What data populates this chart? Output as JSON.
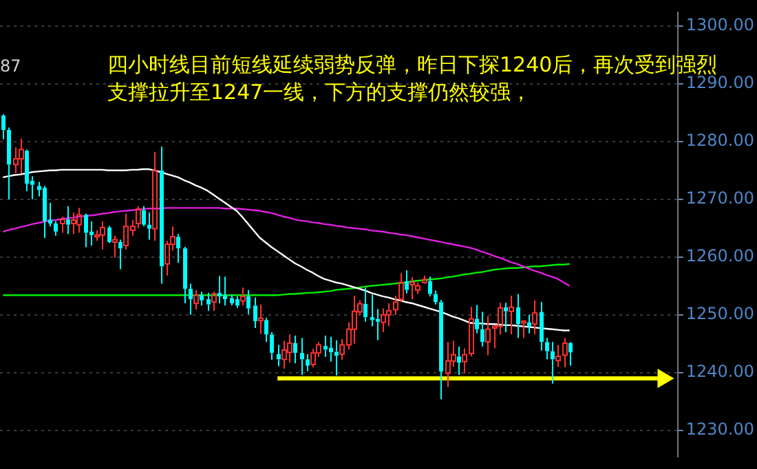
{
  "chart_data": {
    "type": "candlestick",
    "categories": [
      null,
      null,
      null,
      null,
      null,
      null,
      null,
      null,
      null,
      null,
      null,
      null,
      null,
      null,
      null,
      null,
      null,
      null,
      null,
      null,
      null,
      null,
      null,
      null,
      null,
      null,
      null,
      null,
      null,
      null,
      null,
      null,
      null,
      null,
      null,
      null,
      null,
      null,
      null,
      null,
      null,
      null,
      null,
      null,
      null,
      null,
      null,
      null,
      null,
      null,
      null,
      null,
      null,
      null,
      null,
      null,
      null,
      null,
      null,
      null,
      null,
      null,
      null,
      null,
      null,
      null,
      null,
      null,
      null,
      null,
      null,
      null,
      null,
      null,
      null,
      null,
      null,
      null,
      null,
      null,
      null,
      null,
      null,
      null,
      null,
      null,
      null,
      null,
      null,
      null,
      null,
      null,
      null,
      null,
      null,
      null,
      null,
      null,
      null,
      null,
      null,
      null,
      null,
      null,
      null,
      null,
      null,
      null,
      null,
      null,
      null,
      null,
      null,
      null,
      null,
      null
    ],
    "ohlc": [
      [
        1284.5,
        1284.7,
        1280.4,
        1282
      ],
      [
        1282,
        1282.4,
        1270,
        1276
      ],
      [
        1276,
        1279,
        1274.5,
        1277
      ],
      [
        1277,
        1280.5,
        1274.5,
        1278.6
      ],
      [
        1278.4,
        1278.6,
        1271.4,
        1272.7
      ],
      [
        1273.2,
        1274,
        1270,
        1272.5
      ],
      [
        1272.3,
        1273,
        1270.5,
        1271.6
      ],
      [
        1272,
        1272.3,
        1263.3,
        1266.2
      ],
      [
        1266.5,
        1269.4,
        1265.3,
        1265.8
      ],
      [
        1265.8,
        1266.2,
        1263.7,
        1264.4
      ],
      [
        1265.8,
        1267,
        1264.2,
        1266.5
      ],
      [
        1266.5,
        1268.8,
        1264,
        1265.6
      ],
      [
        1265.8,
        1267.7,
        1264,
        1266.4
      ],
      [
        1265.6,
        1268.5,
        1264.2,
        1267.3
      ],
      [
        1267.3,
        1267.5,
        1261.7,
        1264.2
      ],
      [
        1264.4,
        1266.2,
        1262,
        1263.8
      ],
      [
        1263.5,
        1264.6,
        1262.8,
        1263.8
      ],
      [
        1263.8,
        1266.2,
        1261.3,
        1265.1
      ],
      [
        1265.1,
        1265.4,
        1262.4,
        1262.6
      ],
      [
        1262.6,
        1263.7,
        1259.9,
        1263
      ],
      [
        1262.6,
        1263,
        1257.9,
        1261.5
      ],
      [
        1262,
        1267.5,
        1261.3,
        1265.3
      ],
      [
        1264.6,
        1266.4,
        1263.7,
        1265.3
      ],
      [
        1265.8,
        1268.8,
        1265,
        1268.3
      ],
      [
        1268.1,
        1268.8,
        1265.3,
        1265.6
      ],
      [
        1265.6,
        1267.7,
        1263,
        1264.9
      ],
      [
        1264.9,
        1278.2,
        1262.8,
        1275
      ],
      [
        1275,
        1279.1,
        1255.4,
        1258.4
      ],
      [
        1258.8,
        1262.8,
        1256.8,
        1262.2
      ],
      [
        1262.2,
        1265.3,
        1261.1,
        1263.5
      ],
      [
        1263.5,
        1264,
        1259,
        1261.5
      ],
      [
        1261.5,
        1261.8,
        1252,
        1254.5
      ],
      [
        1254.5,
        1255.4,
        1250,
        1252.7
      ],
      [
        1252,
        1254.3,
        1250.9,
        1253.4
      ],
      [
        1253.4,
        1254,
        1251.6,
        1252.5
      ],
      [
        1252.7,
        1253.8,
        1250.7,
        1251.8
      ],
      [
        1252.2,
        1254,
        1250.7,
        1253.6
      ],
      [
        1253.8,
        1256.7,
        1252,
        1253.2
      ],
      [
        1253.4,
        1256.6,
        1251.6,
        1252.7
      ],
      [
        1252.9,
        1253.5,
        1251.6,
        1252
      ],
      [
        1252.7,
        1253.2,
        1251.2,
        1251.6
      ],
      [
        1252.4,
        1254.7,
        1251.6,
        1253.2
      ],
      [
        1253.2,
        1254.3,
        1250.1,
        1251.1
      ],
      [
        1251.6,
        1253,
        1247.7,
        1248.9
      ],
      [
        1249,
        1251.8,
        1246.7,
        1249.4
      ],
      [
        1249.1,
        1249.5,
        1245.3,
        1246.6
      ],
      [
        1246.6,
        1247,
        1242.2,
        1243.4
      ],
      [
        1243.2,
        1244.8,
        1241.1,
        1242.3
      ],
      [
        1242.3,
        1245.5,
        1240.7,
        1243.9
      ],
      [
        1243.5,
        1246.6,
        1241.7,
        1245.1
      ],
      [
        1245.1,
        1246.4,
        1241.6,
        1243.4
      ],
      [
        1243.4,
        1246,
        1239.6,
        1242.3
      ],
      [
        1242.3,
        1243.2,
        1240.2,
        1241.2
      ],
      [
        1241.4,
        1244.1,
        1240.9,
        1243.4
      ],
      [
        1243.4,
        1245.3,
        1242.7,
        1244.8
      ],
      [
        1244.6,
        1246.4,
        1242.7,
        1244
      ],
      [
        1244.3,
        1246.2,
        1241.9,
        1243.5
      ],
      [
        1243.6,
        1245.6,
        1239.5,
        1242.9
      ],
      [
        1243.2,
        1245.8,
        1242.2,
        1244.8
      ],
      [
        1244.8,
        1248.7,
        1244,
        1247.5
      ],
      [
        1247.5,
        1253.3,
        1245,
        1250.6
      ],
      [
        1250.5,
        1252.5,
        1250,
        1251.9
      ],
      [
        1251.9,
        1254.7,
        1248.8,
        1249.6
      ],
      [
        1249.6,
        1253.5,
        1248,
        1249.1
      ],
      [
        1249.3,
        1251,
        1245.6,
        1248.8
      ],
      [
        1248.7,
        1251.1,
        1247,
        1250
      ],
      [
        1250,
        1252,
        1248,
        1250.7
      ],
      [
        1250.9,
        1253.3,
        1250,
        1252.2
      ],
      [
        1252.7,
        1257.2,
        1252.2,
        1255.6
      ],
      [
        1255.8,
        1257.7,
        1253.7,
        1254.3
      ],
      [
        1255.2,
        1256.5,
        1252.7,
        1255.6
      ],
      [
        1254.3,
        1255.6,
        1253.6,
        1255
      ],
      [
        1255.6,
        1256.8,
        1255.4,
        1256.1
      ],
      [
        1255.8,
        1256.6,
        1253.2,
        1253.6
      ],
      [
        1253.6,
        1254.2,
        1251.8,
        1252.2
      ],
      [
        1252.2,
        1252.6,
        1235.4,
        1240.2
      ],
      [
        1239.9,
        1245.3,
        1237.5,
        1242
      ],
      [
        1242,
        1245.5,
        1241,
        1243.1
      ],
      [
        1242.8,
        1244.5,
        1239.6,
        1241.7
      ],
      [
        1241.9,
        1244.2,
        1239.9,
        1243.1
      ],
      [
        1243.3,
        1251.4,
        1242.8,
        1249.3
      ],
      [
        1249.3,
        1251.7,
        1246.8,
        1247.5
      ],
      [
        1247.5,
        1250.5,
        1244.5,
        1245.3
      ],
      [
        1245.3,
        1249.8,
        1243,
        1247.5
      ],
      [
        1247.7,
        1248.2,
        1244.2,
        1248
      ],
      [
        1248,
        1252.1,
        1246.6,
        1251.2
      ],
      [
        1251.3,
        1252.1,
        1247,
        1250.6
      ],
      [
        1250.6,
        1253.3,
        1246.6,
        1251.3
      ],
      [
        1251.3,
        1253.6,
        1246,
        1248.4
      ],
      [
        1248.6,
        1248.9,
        1246,
        1248.9
      ],
      [
        1248.7,
        1250,
        1246.8,
        1248
      ],
      [
        1248.4,
        1252.5,
        1246.6,
        1250.3
      ],
      [
        1250.5,
        1252.2,
        1243.8,
        1245.3
      ],
      [
        1245.3,
        1246,
        1242.3,
        1243.7
      ],
      [
        1243.7,
        1245.3,
        1238.1,
        1242.3
      ],
      [
        1242.1,
        1244.8,
        1241,
        1242.8
      ],
      [
        1243,
        1246,
        1240.9,
        1245.1
      ],
      [
        1245.1,
        1245.3,
        1241.2,
        1243.5
      ],
      null,
      null,
      null,
      null,
      null,
      null,
      null,
      null,
      null,
      null,
      null,
      null,
      null,
      null,
      null,
      null,
      null,
      null
    ],
    "colors": [
      "#00ffff",
      "#00ffff",
      "#ff3232",
      "#ff3232",
      "#00ffff",
      "#00ffff",
      "#00ffff",
      "#00ffff",
      "#00ffff",
      "#00ffff",
      "#ff3232",
      "#00ffff",
      "#ff3232",
      "#ff3232",
      "#00ffff",
      "#00ffff",
      "#ff3232",
      "#ff3232",
      "#00ffff",
      "#ff3232",
      "#00ffff",
      "#ff3232",
      "#ff3232",
      "#ff3232",
      "#00ffff",
      "#00ffff",
      "#ff3232",
      "#00ffff",
      "#ff3232",
      "#ff3232",
      "#00ffff",
      "#00ffff",
      "#00ffff",
      "#ff3232",
      "#00ffff",
      "#00ffff",
      "#ff3232",
      "#00ffff",
      "#00ffff",
      "#00ffff",
      "#00ffff",
      "#ff3232",
      "#00ffff",
      "#00ffff",
      "#ff3232",
      "#00ffff",
      "#00ffff",
      "#00ffff",
      "#ff3232",
      "#ff3232",
      "#00ffff",
      "#00ffff",
      "#00ffff",
      "#ff3232",
      "#ff3232",
      "#00ffff",
      "#00ffff",
      "#00ffff",
      "#ff3232",
      "#ff3232",
      "#ff3232",
      "#ff3232",
      "#00ffff",
      "#00ffff",
      "#00ffff",
      "#ff3232",
      "#ff3232",
      "#ff3232",
      "#ff3232",
      "#00ffff",
      "#ff3232",
      "#ff3232",
      "#ff3232",
      "#00ffff",
      "#00ffff",
      "#00ffff",
      "#ff3232",
      "#ff3232",
      "#00ffff",
      "#ff3232",
      "#ff3232",
      "#00ffff",
      "#00ffff",
      "#ff3232",
      "#ff3232",
      "#ff3232",
      "#00ffff",
      "#ff3232",
      "#00ffff",
      "#ff3232",
      "#00ffff",
      "#ff3232",
      "#00ffff",
      "#00ffff",
      "#00ffff",
      "#ff3232",
      "#ff3232",
      "#00ffff",
      null,
      null,
      null,
      null,
      null,
      null,
      null,
      null,
      null,
      null,
      null,
      null,
      null,
      null,
      null,
      null,
      null,
      null
    ],
    "series": [
      {
        "type": "line",
        "color": "#ffffff",
        "values": [
          1273.8,
          1274.0,
          1274.2,
          1274.3,
          1274.5,
          1274.7,
          1274.8,
          1274.9,
          1275.0,
          1275.0,
          1275.1,
          1275.1,
          1275.1,
          1275.1,
          1275.1,
          1275.1,
          1275.1,
          1275.1,
          1275.0,
          1275.0,
          1275.0,
          1275.0,
          1275.1,
          1275.1,
          1275.2,
          1275.2,
          1275.0,
          1274.7,
          1274.4,
          1274.1,
          1273.8,
          1273.3,
          1272.9,
          1272.4,
          1272.0,
          1271.5,
          1270.8,
          1270.1,
          1269.4,
          1268.7,
          1268.0,
          1266.9,
          1265.7,
          1264.5,
          1263.3,
          1262.5,
          1261.7,
          1261.0,
          1260.3,
          1259.6,
          1258.9,
          1258.4,
          1257.8,
          1257.3,
          1256.7,
          1256.2,
          1255.9,
          1255.6,
          1255.4,
          1255.1,
          1254.8,
          1254.5,
          1254.2,
          1253.8,
          1253.5,
          1253.2,
          1253.0,
          1252.7,
          1252.5,
          1252.2,
          1252.0,
          1251.7,
          1251.4,
          1251.1,
          1250.8,
          1250.5,
          1250.1,
          1249.7,
          1249.4,
          1249.0,
          1248.6,
          1248.5,
          1248.5,
          1248.4,
          1248.4,
          1248.3,
          1248.2,
          1248.2,
          1248.1,
          1248.0,
          1247.9,
          1247.8,
          1247.7,
          1247.6,
          1247.5,
          1247.4,
          1247.3,
          1247.3,
          null,
          null,
          null,
          null,
          null,
          null,
          null,
          null,
          null,
          null,
          null,
          null,
          null,
          null,
          null,
          null,
          null,
          null
        ]
      },
      {
        "type": "line",
        "color": "#e020e0",
        "values": [
          1264.4,
          1264.7,
          1264.9,
          1265.2,
          1265.4,
          1265.7,
          1265.9,
          1266.1,
          1266.3,
          1266.4,
          1266.6,
          1266.7,
          1266.8,
          1267.0,
          1267.1,
          1267.2,
          1267.3,
          1267.5,
          1267.6,
          1267.8,
          1267.9,
          1268.0,
          1268.1,
          1268.2,
          1268.3,
          1268.4,
          1268.4,
          1268.4,
          1268.5,
          1268.5,
          1268.5,
          1268.5,
          1268.5,
          1268.5,
          1268.5,
          1268.5,
          1268.5,
          1268.5,
          1268.4,
          1268.4,
          1268.4,
          1268.3,
          1268.2,
          1268.1,
          1268.0,
          1267.8,
          1267.6,
          1267.3,
          1267.0,
          1266.8,
          1266.5,
          1266.3,
          1266.2,
          1266.0,
          1265.9,
          1265.7,
          1265.6,
          1265.4,
          1265.3,
          1265.1,
          1265.0,
          1264.9,
          1264.8,
          1264.6,
          1264.5,
          1264.4,
          1264.2,
          1264.1,
          1263.9,
          1263.8,
          1263.6,
          1263.4,
          1263.2,
          1263.0,
          1262.8,
          1262.6,
          1262.4,
          1262.2,
          1262.0,
          1261.8,
          1261.6,
          1261.3,
          1260.9,
          1260.6,
          1260.2,
          1259.9,
          1259.5,
          1259.1,
          1258.8,
          1258.4,
          1258.0,
          1257.6,
          1257.3,
          1256.9,
          1256.6,
          1256.2,
          1255.6,
          1255.0,
          null,
          null,
          null,
          null,
          null,
          null,
          null,
          null,
          null,
          null,
          null,
          null,
          null,
          null,
          null,
          null,
          null,
          null
        ]
      },
      {
        "type": "line",
        "color": "#00ee00",
        "values": [
          1253.4,
          1253.4,
          1253.4,
          1253.4,
          1253.4,
          1253.4,
          1253.4,
          1253.4,
          1253.4,
          1253.4,
          1253.4,
          1253.4,
          1253.4,
          1253.4,
          1253.4,
          1253.4,
          1253.4,
          1253.4,
          1253.4,
          1253.4,
          1253.4,
          1253.4,
          1253.4,
          1253.4,
          1253.4,
          1253.4,
          1253.4,
          1253.4,
          1253.4,
          1253.4,
          1253.4,
          1253.4,
          1253.4,
          1253.4,
          1253.4,
          1253.4,
          1253.4,
          1253.4,
          1253.4,
          1253.4,
          1253.4,
          1253.4,
          1253.4,
          1253.4,
          1253.4,
          1253.4,
          1253.4,
          1253.4,
          1253.5,
          1253.6,
          1253.6,
          1253.7,
          1253.8,
          1253.8,
          1253.9,
          1254.0,
          1254.1,
          1254.3,
          1254.4,
          1254.5,
          1254.6,
          1254.7,
          1254.9,
          1255.0,
          1255.1,
          1255.2,
          1255.3,
          1255.4,
          1255.5,
          1255.6,
          1255.8,
          1255.9,
          1256.0,
          1256.1,
          1256.2,
          1256.3,
          1256.5,
          1256.6,
          1256.8,
          1257.0,
          1257.1,
          1257.3,
          1257.4,
          1257.6,
          1257.8,
          1257.9,
          1258.0,
          1258.1,
          1258.1,
          1258.2,
          1258.3,
          1258.4,
          1258.4,
          1258.5,
          1258.6,
          1258.7,
          1258.7,
          1258.8,
          null,
          null,
          null,
          null,
          null,
          null,
          null,
          null,
          null,
          null,
          null,
          null,
          null,
          null,
          null,
          null,
          null,
          null
        ]
      },
      {
        "type": "line",
        "color": "#ffff00",
        "values": [
          null,
          null,
          null,
          null,
          null,
          null,
          null,
          null,
          null,
          null,
          null,
          null,
          null,
          null,
          null,
          null,
          null,
          null,
          null,
          null,
          null,
          null,
          null,
          null,
          null,
          null,
          null,
          null,
          null,
          null,
          null,
          null,
          null,
          null,
          null,
          null,
          null,
          null,
          null,
          null,
          null,
          null,
          null,
          null,
          null,
          null,
          null,
          1239,
          1239,
          1239,
          1239,
          1239,
          1239,
          1239,
          1239,
          1239,
          1239,
          1239,
          1239,
          1239,
          1239,
          1239,
          1239,
          1239,
          1239,
          1239,
          1239,
          1239,
          1239,
          1239,
          1239,
          1239,
          1239,
          1239,
          1239,
          1239,
          1239,
          1239,
          1239,
          1239,
          1239,
          1239,
          1239,
          1239,
          1239,
          1239,
          1239,
          1239,
          1239,
          1239,
          1239,
          1239,
          1239,
          1239,
          1239,
          1239,
          1239,
          1239,
          1239,
          1239,
          1239,
          1239,
          1239,
          1239,
          1239,
          1239,
          1239,
          1239,
          1239,
          1239,
          1239,
          1239,
          1239,
          1239,
          null,
          null
        ]
      }
    ],
    "ylim": [
      1225.5,
      1302.3
    ],
    "yticks": [
      {
        "value": 1230,
        "label": "1230.00"
      },
      {
        "value": 1240,
        "label": "1240.00"
      },
      {
        "value": 1250,
        "label": "1250.00"
      },
      {
        "value": 1260,
        "label": "1260.00"
      },
      {
        "value": 1270,
        "label": "1270.00"
      },
      {
        "value": 1280,
        "label": "1280.00"
      },
      {
        "value": 1290,
        "label": "1290.00"
      },
      {
        "value": 1300,
        "label": "1300.00"
      }
    ],
    "grid": "y",
    "legend": false,
    "annotations": [
      "87",
      "四小时线目前短线延续弱势反弹，昨日下探1240后，再次受到强烈",
      "支撑拉升至1247一线，下方的支撑仍然较强，"
    ]
  }
}
